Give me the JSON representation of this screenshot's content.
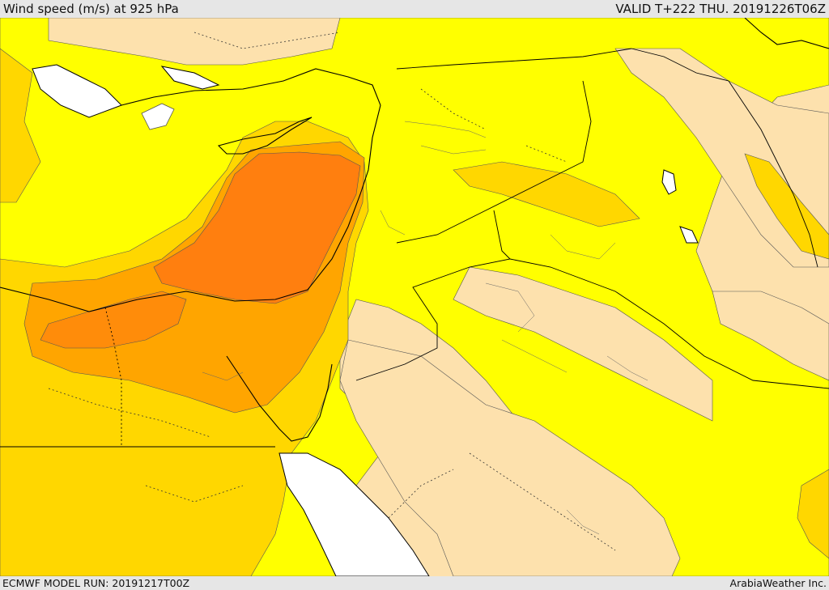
{
  "header": {
    "title": "Wind speed (m/s) at 925 hPa",
    "valid": "VALID T+222 THU. 20191226T06Z"
  },
  "footer": {
    "model_run": "ECMWF MODEL RUN: 20191217T00Z",
    "credit": "ArabiaWeather Inc."
  },
  "colors": {
    "sea_missing": "#ffffff",
    "light_wind": "#fde1ad",
    "yellow": "#ffff00",
    "gold": "#ffd700",
    "amber": "#ffa500",
    "orange": "#ff7f0f",
    "contour": "#555555",
    "coast": "#000000"
  }
}
